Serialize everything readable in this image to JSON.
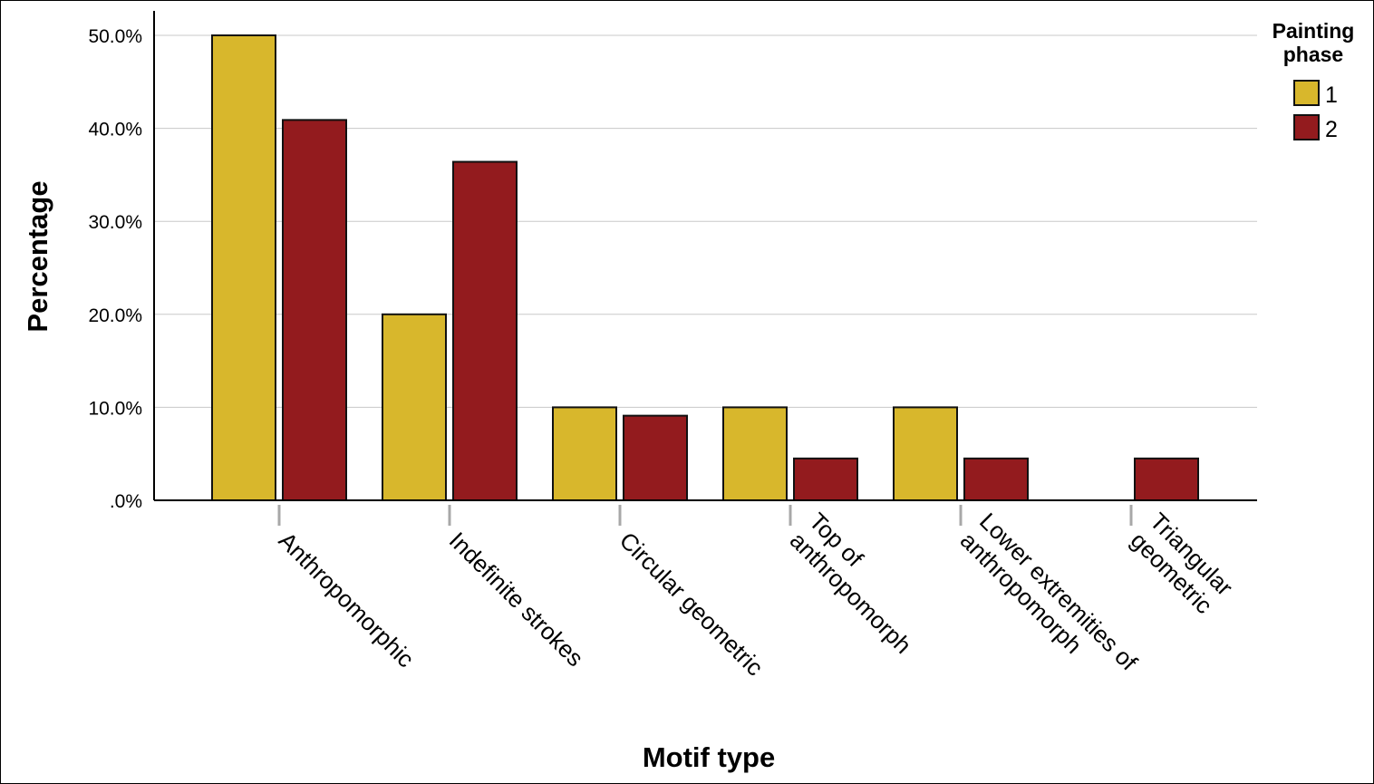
{
  "chart_data": {
    "type": "bar",
    "title": "",
    "xlabel": "Motif type",
    "ylabel": "Percentage",
    "ylim": [
      0,
      52
    ],
    "yticks": [
      0,
      10,
      20,
      30,
      40,
      50
    ],
    "ytick_labels": [
      ".0%",
      "10.0%",
      "20.0%",
      "30.0%",
      "40.0%",
      "50.0%"
    ],
    "grid": "horizontal",
    "categories": [
      [
        "Anthropomorphic"
      ],
      [
        "Indefinite strokes"
      ],
      [
        "Circular geometric"
      ],
      [
        "Top of",
        "anthropomorph"
      ],
      [
        "Lower extremities of",
        "anthropomorph"
      ],
      [
        "Triangular",
        "geometric"
      ]
    ],
    "legend": {
      "title": [
        "Painting",
        "phase"
      ],
      "position": "top-right"
    },
    "series": [
      {
        "name": "1",
        "color": "#d8b72c",
        "values": [
          50.0,
          20.0,
          10.0,
          10.0,
          10.0,
          0.0
        ]
      },
      {
        "name": "2",
        "color": "#931b1e",
        "values": [
          40.9,
          36.4,
          9.1,
          4.5,
          4.5,
          4.5
        ]
      }
    ]
  }
}
